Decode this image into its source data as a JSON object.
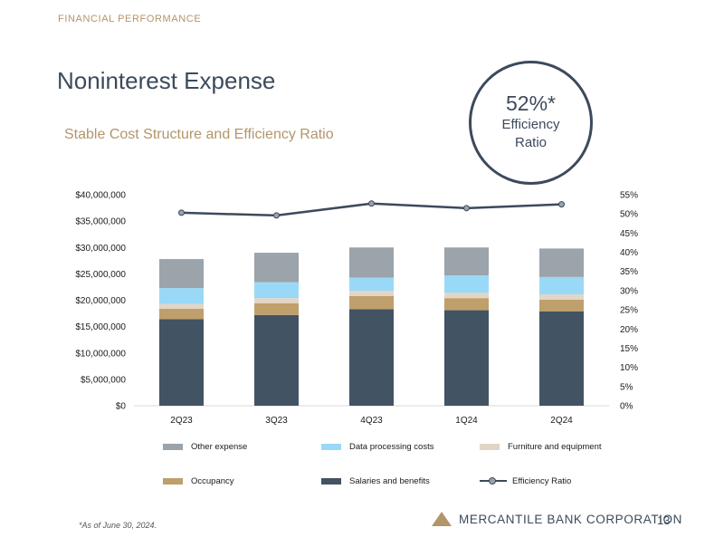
{
  "header": {
    "section": "FINANCIAL PERFORMANCE",
    "title": "Noninterest Expense",
    "subtitle": "Stable Cost Structure and Efficiency Ratio"
  },
  "callout": {
    "value": "52%*",
    "label": "Efficiency Ratio"
  },
  "footer": {
    "footnote": "*As of June 30, 2024.",
    "company": "MERCANTILE BANK CORPORATION",
    "page": "13"
  },
  "colors": {
    "salaries": "#425364",
    "occupancy": "#bf9f6b",
    "furniture": "#e3d5c5",
    "data_processing": "#99d9f7",
    "other": "#9ba3ab",
    "line": "#3c4a5c",
    "marker": "#9aa3ad",
    "gold": "#b3956a"
  },
  "chart_data": {
    "type": "bar",
    "stacked": true,
    "categories": [
      "2Q23",
      "3Q23",
      "4Q23",
      "1Q24",
      "2Q24"
    ],
    "series": [
      {
        "name": "Salaries and benefits",
        "key": "salaries",
        "values": [
          16400000,
          17200000,
          18300000,
          18100000,
          17900000
        ]
      },
      {
        "name": "Occupancy",
        "key": "occupancy",
        "values": [
          2000000,
          2200000,
          2500000,
          2300000,
          2200000
        ]
      },
      {
        "name": "Furniture and equipment",
        "key": "furniture",
        "values": [
          900000,
          1000000,
          1000000,
          1000000,
          1000000
        ]
      },
      {
        "name": "Data processing costs",
        "key": "data_processing",
        "values": [
          3000000,
          3000000,
          2500000,
          3300000,
          3300000
        ]
      },
      {
        "name": "Other expense",
        "key": "other",
        "values": [
          5500000,
          5600000,
          5700000,
          5300000,
          5400000
        ]
      }
    ],
    "line_series": {
      "name": "Efficiency Ratio",
      "axis": "right",
      "values": [
        50.3,
        49.6,
        52.7,
        51.5,
        52.5
      ]
    },
    "y_left": {
      "range": [
        0,
        40000000
      ],
      "ticks": [
        {
          "value": 0,
          "label": "$0"
        },
        {
          "value": 5000000,
          "label": "$5,000,000"
        },
        {
          "value": 10000000,
          "label": "$10,000,000"
        },
        {
          "value": 15000000,
          "label": "$15,000,000"
        },
        {
          "value": 20000000,
          "label": "$20,000,000"
        },
        {
          "value": 25000000,
          "label": "$25,000,000"
        },
        {
          "value": 30000000,
          "label": "$30,000,000"
        },
        {
          "value": 35000000,
          "label": "$35,000,000"
        },
        {
          "value": 40000000,
          "label": "$40,000,000"
        }
      ]
    },
    "y_right": {
      "range": [
        0,
        55
      ],
      "ticks": [
        {
          "value": 0,
          "label": "0%"
        },
        {
          "value": 5,
          "label": "5%"
        },
        {
          "value": 10,
          "label": "10%"
        },
        {
          "value": 15,
          "label": "15%"
        },
        {
          "value": 20,
          "label": "20%"
        },
        {
          "value": 25,
          "label": "25%"
        },
        {
          "value": 30,
          "label": "30%"
        },
        {
          "value": 35,
          "label": "35%"
        },
        {
          "value": 40,
          "label": "40%"
        },
        {
          "value": 45,
          "label": "45%"
        },
        {
          "value": 50,
          "label": "50%"
        },
        {
          "value": 55,
          "label": "55%"
        }
      ]
    },
    "legend": [
      {
        "label": "Other expense",
        "key": "other",
        "kind": "bar"
      },
      {
        "label": "Data processing costs",
        "key": "data_processing",
        "kind": "bar"
      },
      {
        "label": "Furniture and equipment",
        "key": "furniture",
        "kind": "bar"
      },
      {
        "label": "Occupancy",
        "key": "occupancy",
        "kind": "bar"
      },
      {
        "label": "Salaries and benefits",
        "key": "salaries",
        "kind": "bar"
      },
      {
        "label": "Efficiency Ratio",
        "key": "line",
        "kind": "line"
      }
    ],
    "grid": false,
    "legend_position": "bottom"
  }
}
